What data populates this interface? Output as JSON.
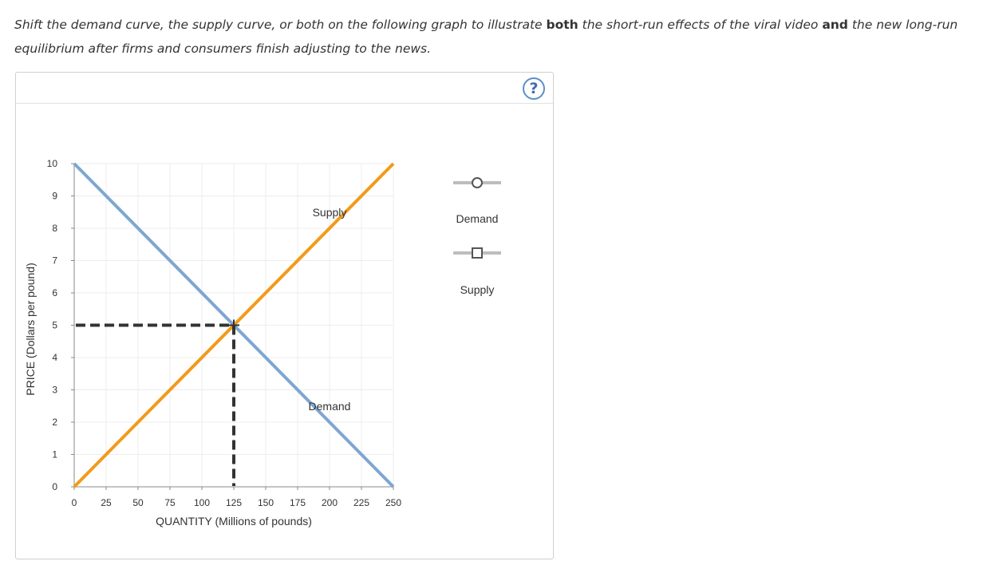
{
  "prompt": {
    "part1": "Shift the demand curve, the supply curve, or both on the following graph to illustrate ",
    "bold1": "both",
    "part2": " the short-run effects of the viral video ",
    "bold2": "and",
    "part3": " the new long-run equilibrium after firms and consumers finish adjusting to the news."
  },
  "help_symbol": "?",
  "legend": [
    {
      "label": "Demand",
      "marker": "circle"
    },
    {
      "label": "Supply",
      "marker": "square"
    }
  ],
  "colors": {
    "demand": "#7ea6d2",
    "supply": "#f39a1a",
    "guide": "#333333",
    "legend_line": "#bdbdbd"
  },
  "chart_data": {
    "type": "line",
    "xlabel": "QUANTITY (Millions of pounds)",
    "ylabel": "PRICE (Dollars per pound)",
    "xlim": [
      0,
      250
    ],
    "ylim": [
      0,
      10
    ],
    "xticks": [
      0,
      25,
      50,
      75,
      100,
      125,
      150,
      175,
      200,
      225,
      250
    ],
    "yticks": [
      0,
      1,
      2,
      3,
      4,
      5,
      6,
      7,
      8,
      9,
      10
    ],
    "grid": true,
    "series": [
      {
        "name": "Demand",
        "points": [
          [
            0,
            10
          ],
          [
            250,
            0
          ]
        ],
        "label_pos": [
          200,
          2.5
        ]
      },
      {
        "name": "Supply",
        "points": [
          [
            0,
            0
          ],
          [
            250,
            10
          ]
        ],
        "label_pos": [
          200,
          8.5
        ]
      }
    ],
    "equilibrium": {
      "x": 125,
      "y": 5
    }
  }
}
